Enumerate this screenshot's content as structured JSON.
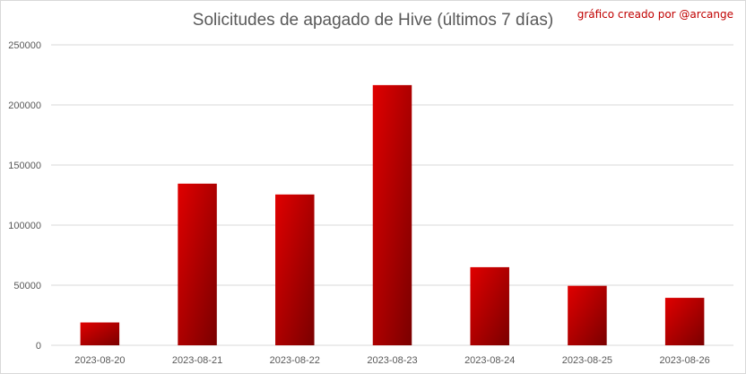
{
  "chart_data": {
    "type": "bar",
    "title": "Solicitudes de apagado de Hive (últimos 7 días)",
    "annotation": "gráfico creado por @arcange",
    "categories": [
      "2023-08-20",
      "2023-08-21",
      "2023-08-22",
      "2023-08-23",
      "2023-08-24",
      "2023-08-25",
      "2023-08-26"
    ],
    "values": [
      19000,
      134500,
      125500,
      216500,
      65000,
      49500,
      39500
    ],
    "ylim": [
      0,
      250000
    ],
    "yticks": [
      0,
      50000,
      100000,
      150000,
      200000,
      250000
    ],
    "ytick_labels": [
      "0",
      "50000",
      "100000",
      "150000",
      "200000",
      "250000"
    ],
    "grid": true,
    "legend": "none",
    "colors": {
      "bar_top": "#e00000",
      "bar_bottom": "#7a0000",
      "grid": "#d9d9d9",
      "text": "#595959",
      "credit": "#c00000"
    }
  }
}
